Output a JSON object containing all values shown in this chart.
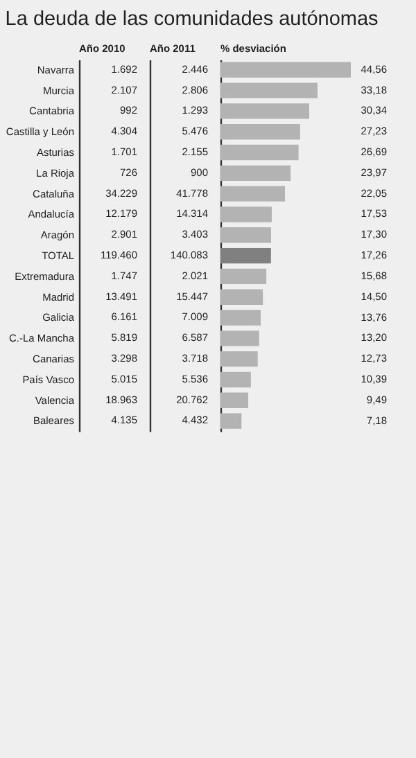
{
  "chart_data": [
    {
      "type": "other",
      "title": "La deuda de las comunidades autónomas",
      "xlabel": "Año 2010",
      "categories": [
        "Navarra",
        "Murcia",
        "Cantabria",
        "Castilla y León",
        "Asturias",
        "La Rioja",
        "Cataluña",
        "Andalucía",
        "Aragón",
        "TOTAL",
        "Extremadura",
        "Madrid",
        "Galicia",
        "C.-La Mancha",
        "Canarias",
        "País Vasco",
        "Valencia",
        "Baleares"
      ],
      "values": [
        1692,
        2107,
        992,
        4304,
        1701,
        726,
        34229,
        12179,
        2901,
        119460,
        1747,
        13491,
        6161,
        5819,
        3298,
        5015,
        18963,
        4135
      ],
      "value_labels": [
        "1.692",
        "2.107",
        "992",
        "4.304",
        "1.701",
        "726",
        "34.229",
        "12.179",
        "2.901",
        "119.460",
        "1.747",
        "13.491",
        "6.161",
        "5.819",
        "3.298",
        "5.015",
        "18.963",
        "4.135"
      ]
    },
    {
      "type": "other",
      "xlabel": "Año 2011",
      "categories": [
        null,
        null,
        null,
        null,
        null,
        null,
        null,
        null,
        null,
        null,
        null,
        null,
        null,
        null,
        null,
        null,
        null,
        null
      ],
      "values": [
        2446,
        2806,
        1293,
        5476,
        2155,
        900,
        41778,
        14314,
        3403,
        140083,
        2021,
        15447,
        7009,
        6587,
        3718,
        5536,
        20762,
        4432
      ],
      "value_labels": [
        "2.446",
        "2.806",
        "1.293",
        "5.476",
        "2.155",
        "900",
        "41.778",
        "14.314",
        "3.403",
        "140.083",
        "2.021",
        "15.447",
        "7.009",
        "6.587",
        "3.718",
        "5.536",
        "20.762",
        "4.432"
      ]
    },
    {
      "type": "bar",
      "orientation": "horizontal",
      "xlabel": "% desviación",
      "categories": [
        null,
        null,
        null,
        null,
        null,
        null,
        null,
        null,
        null,
        null,
        null,
        null,
        null,
        null,
        null,
        null,
        null,
        null
      ],
      "values": [
        44.56,
        33.18,
        30.34,
        27.23,
        26.69,
        23.97,
        22.05,
        17.53,
        17.3,
        17.26,
        15.68,
        14.5,
        13.76,
        13.2,
        12.73,
        10.39,
        9.49,
        7.18
      ],
      "value_labels": [
        "44,56",
        "33,18",
        "30,34",
        "27,23",
        "26,69",
        "23,97",
        "22,05",
        "17,53",
        "17,30",
        "17,26",
        "15,68",
        "14,50",
        "13,76",
        "13,20",
        "12,73",
        "10,39",
        "9,49",
        "7,18"
      ],
      "colors": [
        "#b3b3b3",
        "#b3b3b3",
        "#b3b3b3",
        "#b3b3b3",
        "#b3b3b3",
        "#b3b3b3",
        "#b3b3b3",
        "#b3b3b3",
        "#b3b3b3",
        "#808080",
        "#b3b3b3",
        "#b3b3b3",
        "#b3b3b3",
        "#b3b3b3",
        "#b3b3b3",
        "#b3b3b3",
        "#b3b3b3",
        "#b3b3b3"
      ]
    }
  ]
}
